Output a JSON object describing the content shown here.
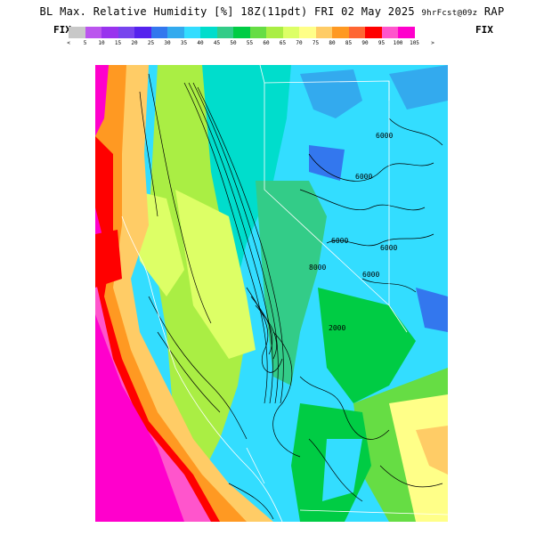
{
  "header": {
    "title_main": "BL Max. Relative Humidity [%] 18Z(11pdt) FRI 02 May 2025",
    "title_small": "9hrFcst@09z",
    "model": "RAP"
  },
  "fix_label_left": "FIX",
  "fix_label_right": "FIX",
  "legend": {
    "under_symbol": "<",
    "over_symbol": ">",
    "tick_labels": [
      "5",
      "10",
      "15",
      "20",
      "25",
      "30",
      "35",
      "40",
      "45",
      "50",
      "55",
      "60",
      "65",
      "70",
      "75",
      "80",
      "85",
      "90",
      "95",
      "100",
      "105"
    ],
    "colors": [
      "#c8c8c8",
      "#bb55ee",
      "#9933ee",
      "#7744ee",
      "#5522ee",
      "#3377ee",
      "#33aaee",
      "#33ddff",
      "#00ddcc",
      "#33cc88",
      "#00cc44",
      "#66dd44",
      "#aaee44",
      "#ddff66",
      "#ffff88",
      "#ffcc66",
      "#ff9922",
      "#ff6633",
      "#ff0000",
      "#ff55cc",
      "#ff00cc"
    ]
  },
  "contour_labels": [
    "6000",
    "6000",
    "6000",
    "8000",
    "6000",
    "6000",
    "2000"
  ],
  "map": {
    "description_layers": [
      "relative humidity shading",
      "terrain elevation contours",
      "state boundaries",
      "coastline"
    ]
  }
}
